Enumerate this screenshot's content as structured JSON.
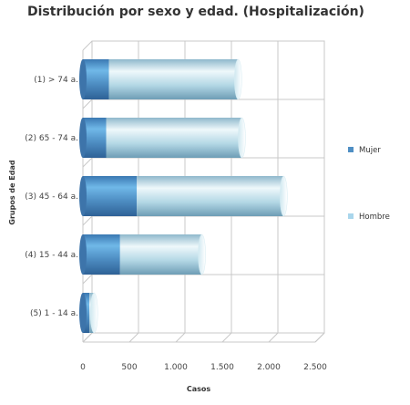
{
  "chart_data": {
    "type": "bar",
    "orientation": "horizontal",
    "stacked": true,
    "title": "Distribución por sexo y edad. (Hospitalización)",
    "xlabel": "Casos",
    "ylabel": "Grupos de Edad",
    "categories": [
      "(1) > 74 a.",
      "(2) 65 - 74 a.",
      "(3) 45 - 64 a.",
      "(4) 15 - 44 a.",
      "(5) 1 - 14 a."
    ],
    "series": [
      {
        "name": "Mujer",
        "values": [
          280,
          250,
          580,
          400,
          70
        ],
        "color": "#4f8fc4"
      },
      {
        "name": "Hombre",
        "values": [
          1390,
          1460,
          1580,
          880,
          50
        ],
        "color": "#a9d6ec"
      }
    ],
    "xlim": [
      0,
      2500
    ],
    "xticks": [
      0,
      500,
      1000,
      1500,
      2000,
      2500
    ],
    "xtick_labels": [
      "0",
      "500",
      "1.000",
      "1.500",
      "2.000",
      "2.500"
    ],
    "grid": true,
    "legend_position": "right"
  }
}
